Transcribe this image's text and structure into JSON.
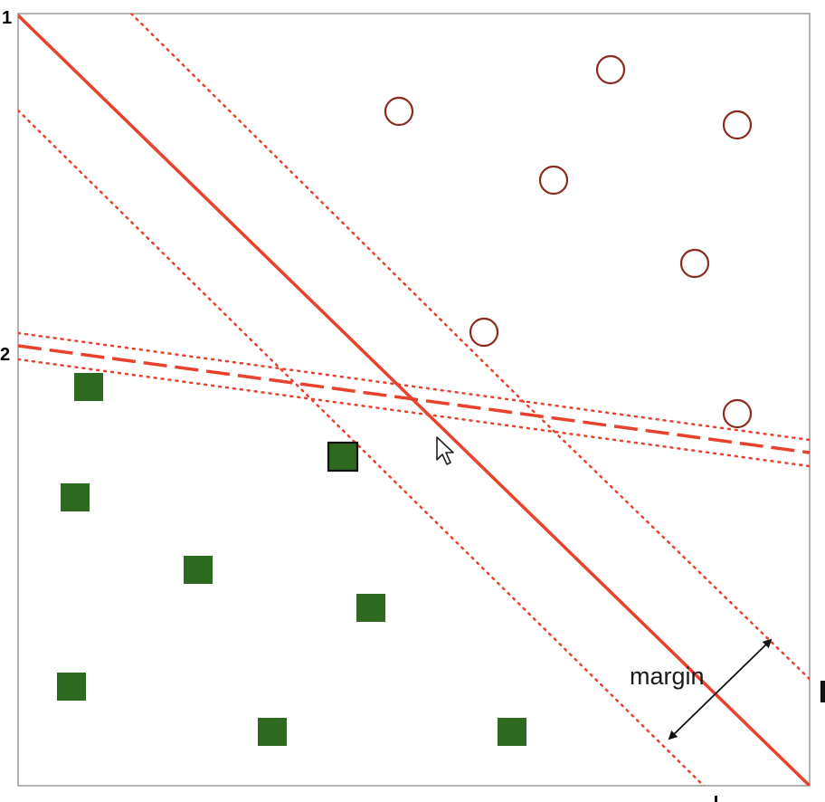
{
  "labels": {
    "corner_top": "1",
    "corner_mid": "2",
    "margin": "margin"
  },
  "colors": {
    "line": "#e8412c",
    "circle": "#8b2a1e",
    "square": "#2d6a1f",
    "frame": "#9a9a9a"
  },
  "legend": {
    "circle_marker": "circle-icon",
    "square_marker": "square-icon"
  }
}
